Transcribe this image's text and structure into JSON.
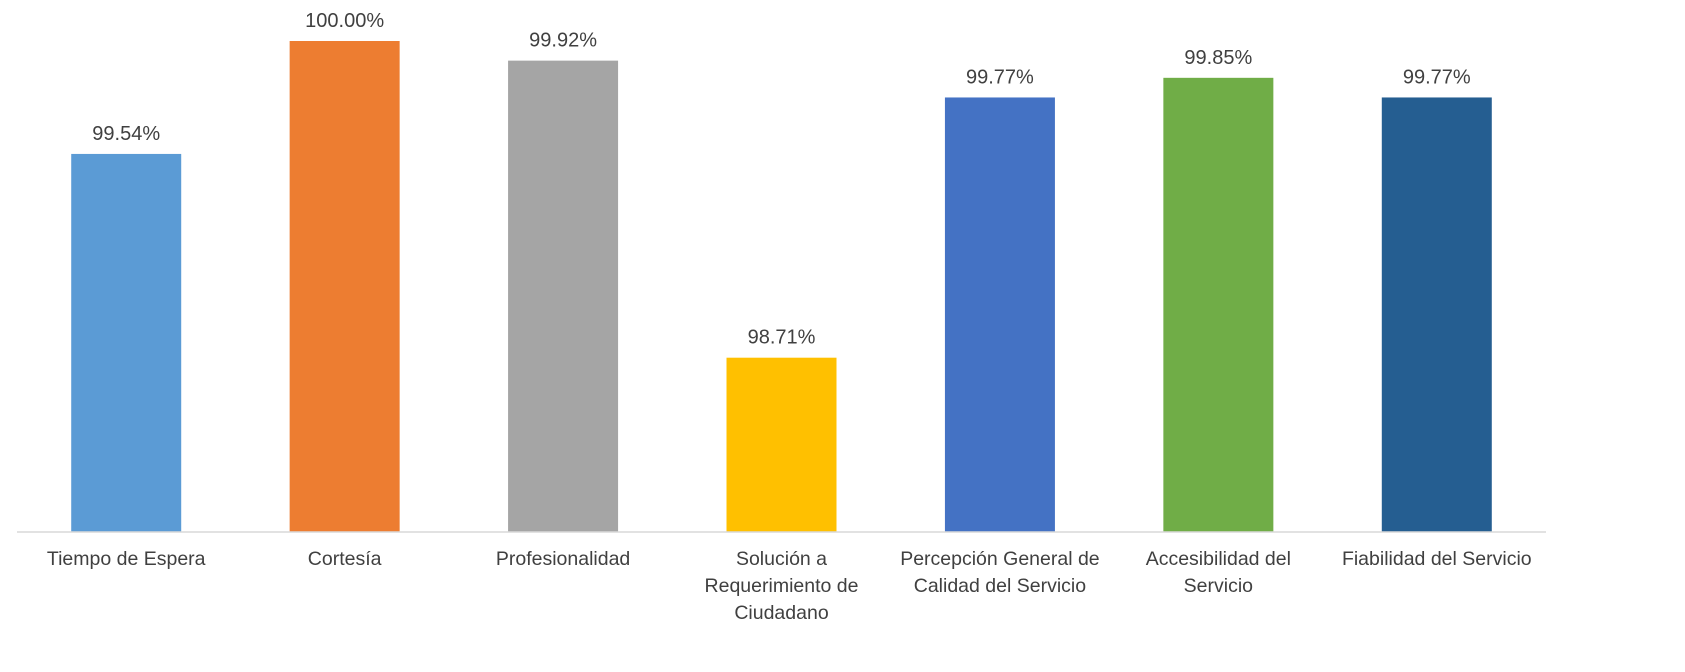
{
  "chart_data": {
    "type": "bar",
    "categories": [
      "Tiempo de Espera",
      "Cortesía",
      "Profesionalidad",
      "Solución a Requerimiento de Ciudadano",
      "Percepción General de Calidad del Servicio",
      "Accesibilidad del Servicio",
      "Fiabilidad del Servicio"
    ],
    "values": [
      99.54,
      100.0,
      99.92,
      98.71,
      99.77,
      99.85,
      99.77
    ],
    "value_labels": [
      "99.54%",
      "100.00%",
      "99.92%",
      "98.71%",
      "99.77%",
      "99.85%",
      "99.77%"
    ],
    "colors": [
      "#5b9bd5",
      "#ed7d31",
      "#a5a5a5",
      "#ffc000",
      "#4472c4",
      "#70ad47",
      "#255e91"
    ],
    "ylim": [
      98,
      100
    ]
  }
}
